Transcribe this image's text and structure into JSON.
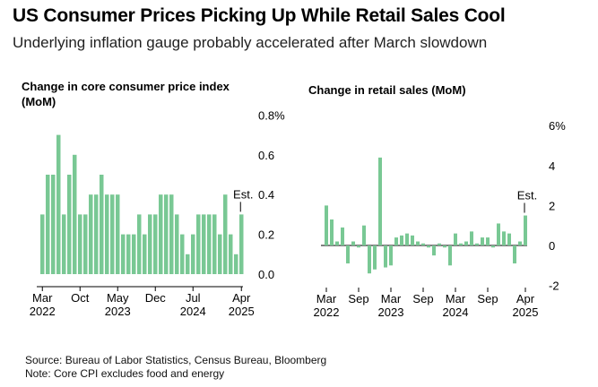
{
  "header": {
    "title": "US Consumer Prices Picking Up While Retail Sales Cool",
    "subtitle": "Underlying inflation gauge probably accelerated after March slowdown"
  },
  "footer": {
    "source": "Source: Bureau of Labor Statistics, Census Bureau, Bloomberg",
    "note": "Note: Core CPI excludes food and energy"
  },
  "colors": {
    "bar": "#79c894",
    "axis": "#000000",
    "text": "#000000"
  },
  "chart_data": [
    {
      "type": "bar",
      "title": "Change in core consumer price index (MoM)",
      "y_unit_suffix": "%",
      "ylim": [
        -0.05,
        0.8
      ],
      "yticks": [
        0.0,
        0.2,
        0.4,
        0.6,
        0.8
      ],
      "ytick_labels": [
        "0.0",
        "0.2",
        "0.4",
        "0.6",
        "0.8%"
      ],
      "x_tick_labels": [
        {
          "month": "Mar",
          "year": "2022",
          "index": 0
        },
        {
          "month": "Oct",
          "index": 7
        },
        {
          "month": "May",
          "year": "2023",
          "index": 14
        },
        {
          "month": "Dec",
          "index": 21
        },
        {
          "month": "Jul",
          "year": "2024",
          "index": 28
        },
        {
          "month": "Apr",
          "year": "2025",
          "index": 37
        }
      ],
      "categories": [
        "2022-03",
        "2022-04",
        "2022-05",
        "2022-06",
        "2022-07",
        "2022-08",
        "2022-09",
        "2022-10",
        "2022-11",
        "2022-12",
        "2023-01",
        "2023-02",
        "2023-03",
        "2023-04",
        "2023-05",
        "2023-06",
        "2023-07",
        "2023-08",
        "2023-09",
        "2023-10",
        "2023-11",
        "2023-12",
        "2024-01",
        "2024-02",
        "2024-03",
        "2024-04",
        "2024-05",
        "2024-06",
        "2024-07",
        "2024-08",
        "2024-09",
        "2024-10",
        "2024-11",
        "2024-12",
        "2025-01",
        "2025-02",
        "2025-03",
        "2025-04"
      ],
      "values": [
        0.3,
        0.5,
        0.5,
        0.7,
        0.3,
        0.5,
        0.6,
        0.3,
        0.3,
        0.4,
        0.4,
        0.5,
        0.4,
        0.4,
        0.4,
        0.2,
        0.2,
        0.2,
        0.3,
        0.2,
        0.3,
        0.3,
        0.4,
        0.4,
        0.4,
        0.3,
        0.2,
        0.1,
        0.2,
        0.3,
        0.3,
        0.3,
        0.3,
        0.2,
        0.4,
        0.2,
        0.1,
        0.3
      ],
      "annotation": {
        "text": "Est.",
        "index": 37
      }
    },
    {
      "type": "bar",
      "title": "Change in retail sales (MoM)",
      "y_unit_suffix": "%",
      "ylim": [
        -2.5,
        6
      ],
      "yticks": [
        -2,
        0,
        2,
        4,
        6
      ],
      "ytick_labels": [
        "-2",
        "0",
        "2",
        "4",
        "6%"
      ],
      "x_tick_labels": [
        {
          "month": "Mar",
          "year": "2022",
          "index": 0
        },
        {
          "month": "Sep",
          "index": 6
        },
        {
          "month": "Mar",
          "year": "2023",
          "index": 12
        },
        {
          "month": "Sep",
          "index": 18
        },
        {
          "month": "Mar",
          "year": "2024",
          "index": 24
        },
        {
          "month": "Sep",
          "index": 30
        },
        {
          "month": "Apr",
          "year": "2025",
          "index": 37
        }
      ],
      "categories": [
        "2022-03",
        "2022-04",
        "2022-05",
        "2022-06",
        "2022-07",
        "2022-08",
        "2022-09",
        "2022-10",
        "2022-11",
        "2022-12",
        "2023-01",
        "2023-02",
        "2023-03",
        "2023-04",
        "2023-05",
        "2023-06",
        "2023-07",
        "2023-08",
        "2023-09",
        "2023-10",
        "2023-11",
        "2023-12",
        "2024-01",
        "2024-02",
        "2024-03",
        "2024-04",
        "2024-05",
        "2024-06",
        "2024-07",
        "2024-08",
        "2024-09",
        "2024-10",
        "2024-11",
        "2024-12",
        "2025-01",
        "2025-02",
        "2025-03",
        "2025-04"
      ],
      "values": [
        2.0,
        1.3,
        0.2,
        0.9,
        -0.9,
        0.2,
        -0.1,
        1.0,
        -1.4,
        -1.2,
        4.4,
        -1.1,
        -1.0,
        0.4,
        0.5,
        0.6,
        0.5,
        0.2,
        0.1,
        -0.1,
        -0.5,
        0.1,
        -0.1,
        -1.0,
        0.6,
        0.1,
        0.2,
        0.7,
        0.1,
        0.4,
        0.4,
        -0.1,
        1.1,
        0.7,
        0.6,
        -0.9,
        0.2,
        1.5
      ],
      "annotation": {
        "text": "Est.",
        "index": 37
      }
    }
  ]
}
